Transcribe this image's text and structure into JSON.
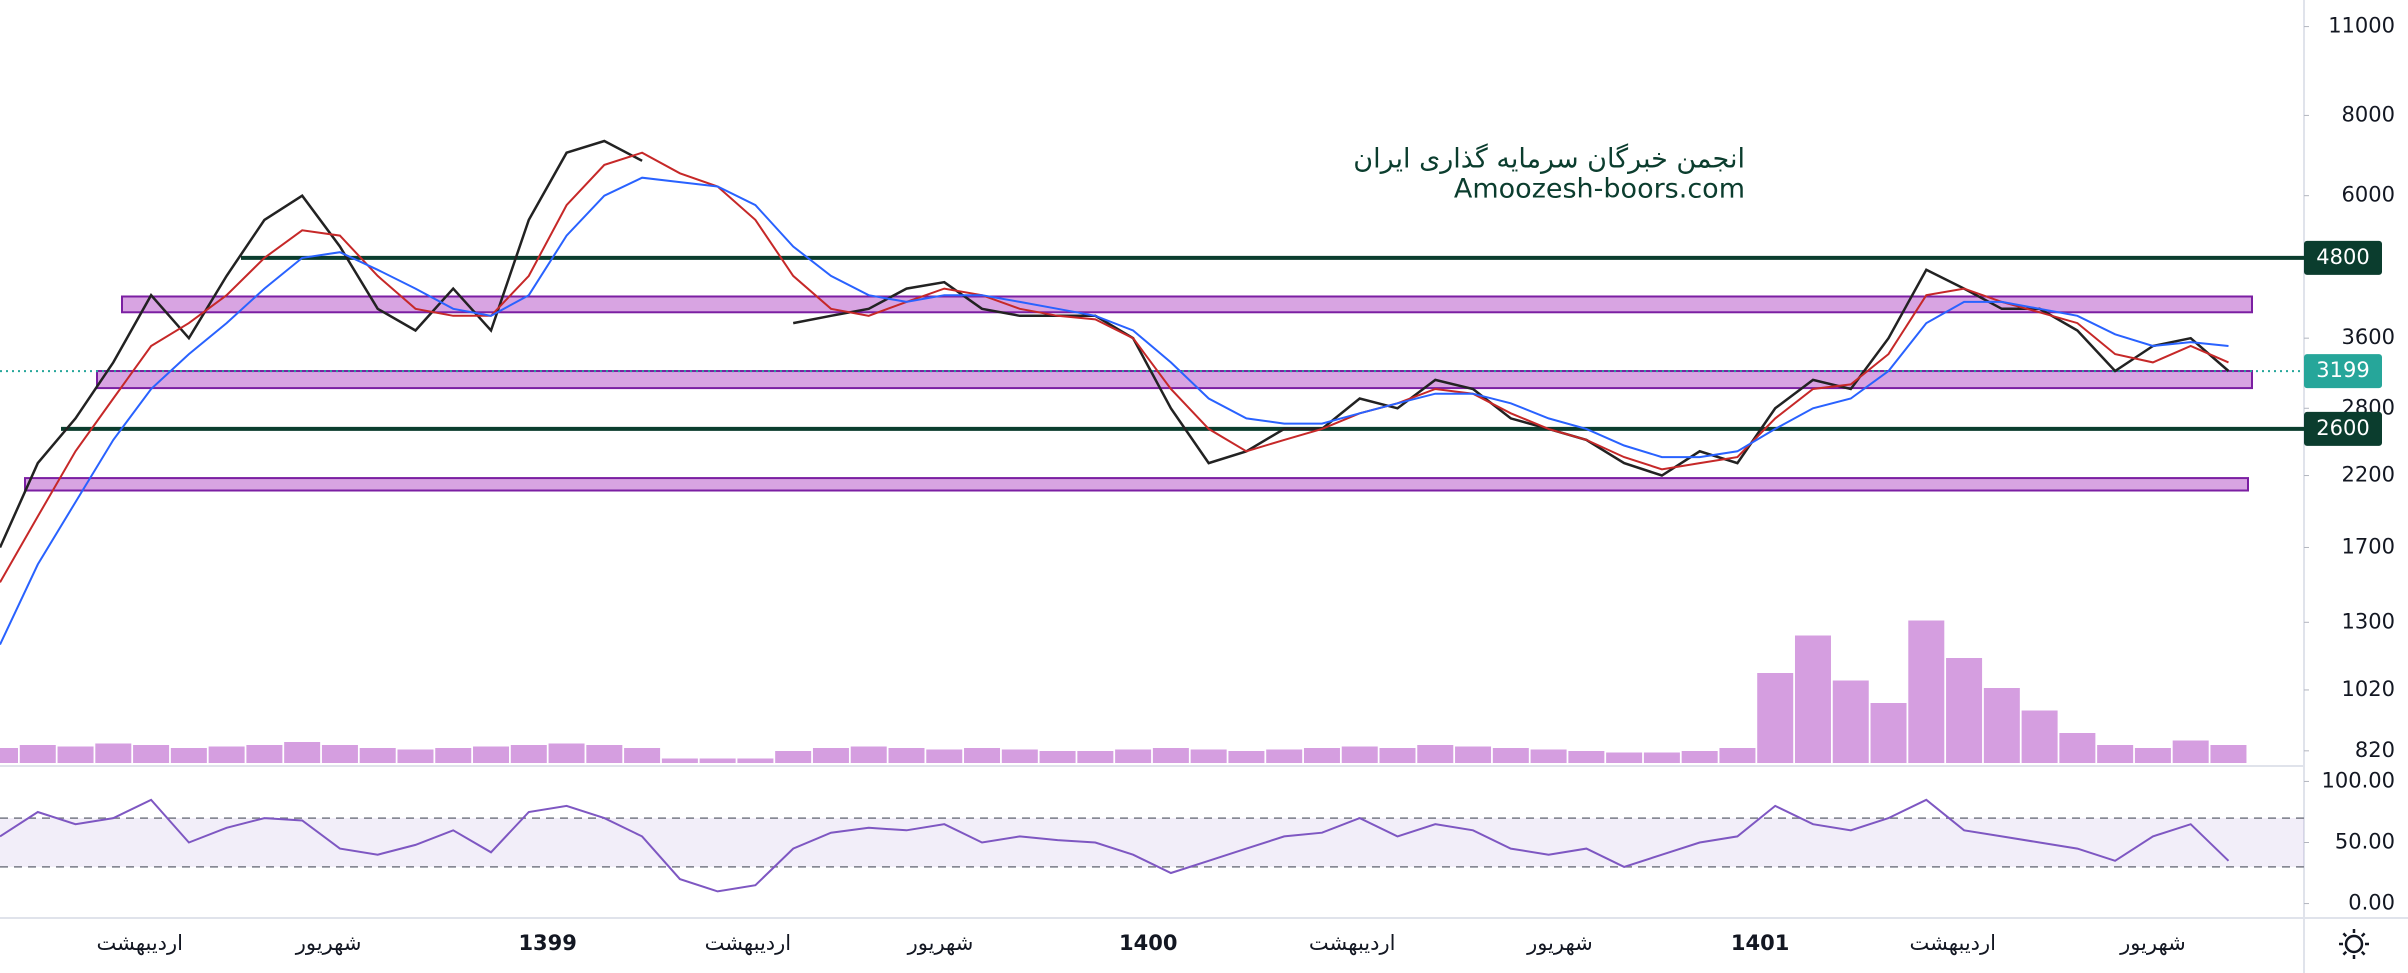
{
  "chart_data": {
    "type": "line",
    "watermark": [
      "انجمن خبرگان سرمایه گذاری ایران",
      "Amoozesh-boors.com"
    ],
    "yscale": "log",
    "ylim": [
      785,
      12100
    ],
    "yticks": [
      820,
      1020,
      1300,
      1700,
      2200,
      2800,
      3600,
      6000,
      8000,
      11000
    ],
    "xlim": [
      0,
      61
    ],
    "xticks": [
      {
        "value": 3.7,
        "label": "اردیبهشت"
      },
      {
        "value": 8.7,
        "label": "شهریور"
      },
      {
        "value": 14.5,
        "label": "1399"
      },
      {
        "value": 19.8,
        "label": "اردیبهشت"
      },
      {
        "value": 24.9,
        "label": "شهریور"
      },
      {
        "value": 30.4,
        "label": "1400"
      },
      {
        "value": 35.8,
        "label": "اردیبهشت"
      },
      {
        "value": 41.3,
        "label": "شهریور"
      },
      {
        "value": 46.6,
        "label": "1401"
      },
      {
        "value": 51.7,
        "label": "اردیبهشت"
      },
      {
        "value": 57.0,
        "label": "شهریور"
      }
    ],
    "series": [
      {
        "color": "#222222",
        "values": [
          1700,
          2300,
          2700,
          3300,
          4200,
          3600,
          4500,
          5500,
          6000,
          5000,
          4000,
          3700,
          4300,
          3700,
          5500,
          7000,
          7300,
          6800,
          null,
          null,
          null,
          3800,
          3900,
          4000,
          4300,
          4400,
          4000,
          3900,
          3900,
          3900,
          3600,
          2800,
          2300,
          2400,
          2600,
          2600,
          2900,
          2800,
          3100,
          3000,
          2700,
          2600,
          2500,
          2300,
          2200,
          2400,
          2300,
          2800,
          3100,
          3000,
          3600,
          4600,
          4300,
          4000,
          4000,
          3700,
          3200,
          3500,
          3600,
          3200
        ]
      },
      {
        "color": "#c62828",
        "values": [
          1500,
          1900,
          2400,
          2900,
          3500,
          3800,
          4200,
          4800,
          5300,
          5200,
          4500,
          4000,
          3900,
          3900,
          4500,
          5800,
          6700,
          7000,
          6500,
          6200,
          5500,
          4500,
          4000,
          3900,
          4100,
          4300,
          4200,
          4000,
          3900,
          3850,
          3600,
          3000,
          2600,
          2400,
          2500,
          2600,
          2750,
          2850,
          3000,
          2950,
          2750,
          2600,
          2500,
          2350,
          2250,
          2300,
          2350,
          2700,
          3000,
          3050,
          3400,
          4200,
          4300,
          4100,
          3950,
          3800,
          3400,
          3300,
          3500,
          3300
        ]
      },
      {
        "color": "#2962ff",
        "values": [
          1200,
          1600,
          2000,
          2500,
          3000,
          3400,
          3800,
          4300,
          4800,
          4900,
          4600,
          4300,
          4000,
          3900,
          4200,
          5200,
          6000,
          6400,
          6300,
          6200,
          5800,
          5000,
          4500,
          4200,
          4100,
          4200,
          4200,
          4100,
          4000,
          3900,
          3700,
          3300,
          2900,
          2700,
          2650,
          2650,
          2750,
          2850,
          2950,
          2950,
          2850,
          2700,
          2600,
          2450,
          2350,
          2350,
          2400,
          2600,
          2800,
          2900,
          3200,
          3800,
          4100,
          4100,
          4000,
          3900,
          3650,
          3500,
          3550,
          3500
        ]
      }
    ],
    "levels": [
      4800,
      2600
    ],
    "level_color": "#0b3d2e",
    "last_price": 3199,
    "last_color": "#26a69a",
    "zones": [
      [
        3950,
        4180
      ],
      [
        3010,
        3200
      ],
      [
        2085,
        2180
      ]
    ],
    "zone_color": "#c77dd6",
    "volume": {
      "color": "#c77dd6",
      "values": [
        10,
        12,
        11,
        13,
        12,
        10,
        11,
        12,
        14,
        12,
        10,
        9,
        10,
        11,
        12,
        13,
        12,
        10,
        3,
        3,
        3,
        8,
        10,
        11,
        10,
        9,
        10,
        9,
        8,
        8,
        9,
        10,
        9,
        8,
        9,
        10,
        11,
        10,
        12,
        11,
        10,
        9,
        8,
        7,
        7,
        8,
        10,
        60,
        85,
        55,
        40,
        95,
        70,
        50,
        35,
        20,
        12,
        10,
        15,
        12
      ]
    },
    "rsi": {
      "color": "#7e57c2",
      "ylim": [
        -11,
        111
      ],
      "yticks": [
        {
          "value": 0,
          "label": "0.00"
        },
        {
          "value": 50,
          "label": "50.00"
        },
        {
          "value": 100,
          "label": "100.00"
        }
      ],
      "bands": [
        30,
        70
      ],
      "values": [
        55,
        75,
        65,
        70,
        85,
        50,
        62,
        70,
        68,
        45,
        40,
        48,
        60,
        42,
        75,
        80,
        70,
        55,
        20,
        10,
        15,
        45,
        58,
        62,
        60,
        65,
        50,
        55,
        52,
        50,
        40,
        25,
        35,
        45,
        55,
        58,
        70,
        55,
        65,
        60,
        45,
        40,
        45,
        30,
        40,
        50,
        55,
        80,
        65,
        60,
        70,
        85,
        60,
        55,
        50,
        45,
        35,
        55,
        65,
        35
      ]
    }
  }
}
